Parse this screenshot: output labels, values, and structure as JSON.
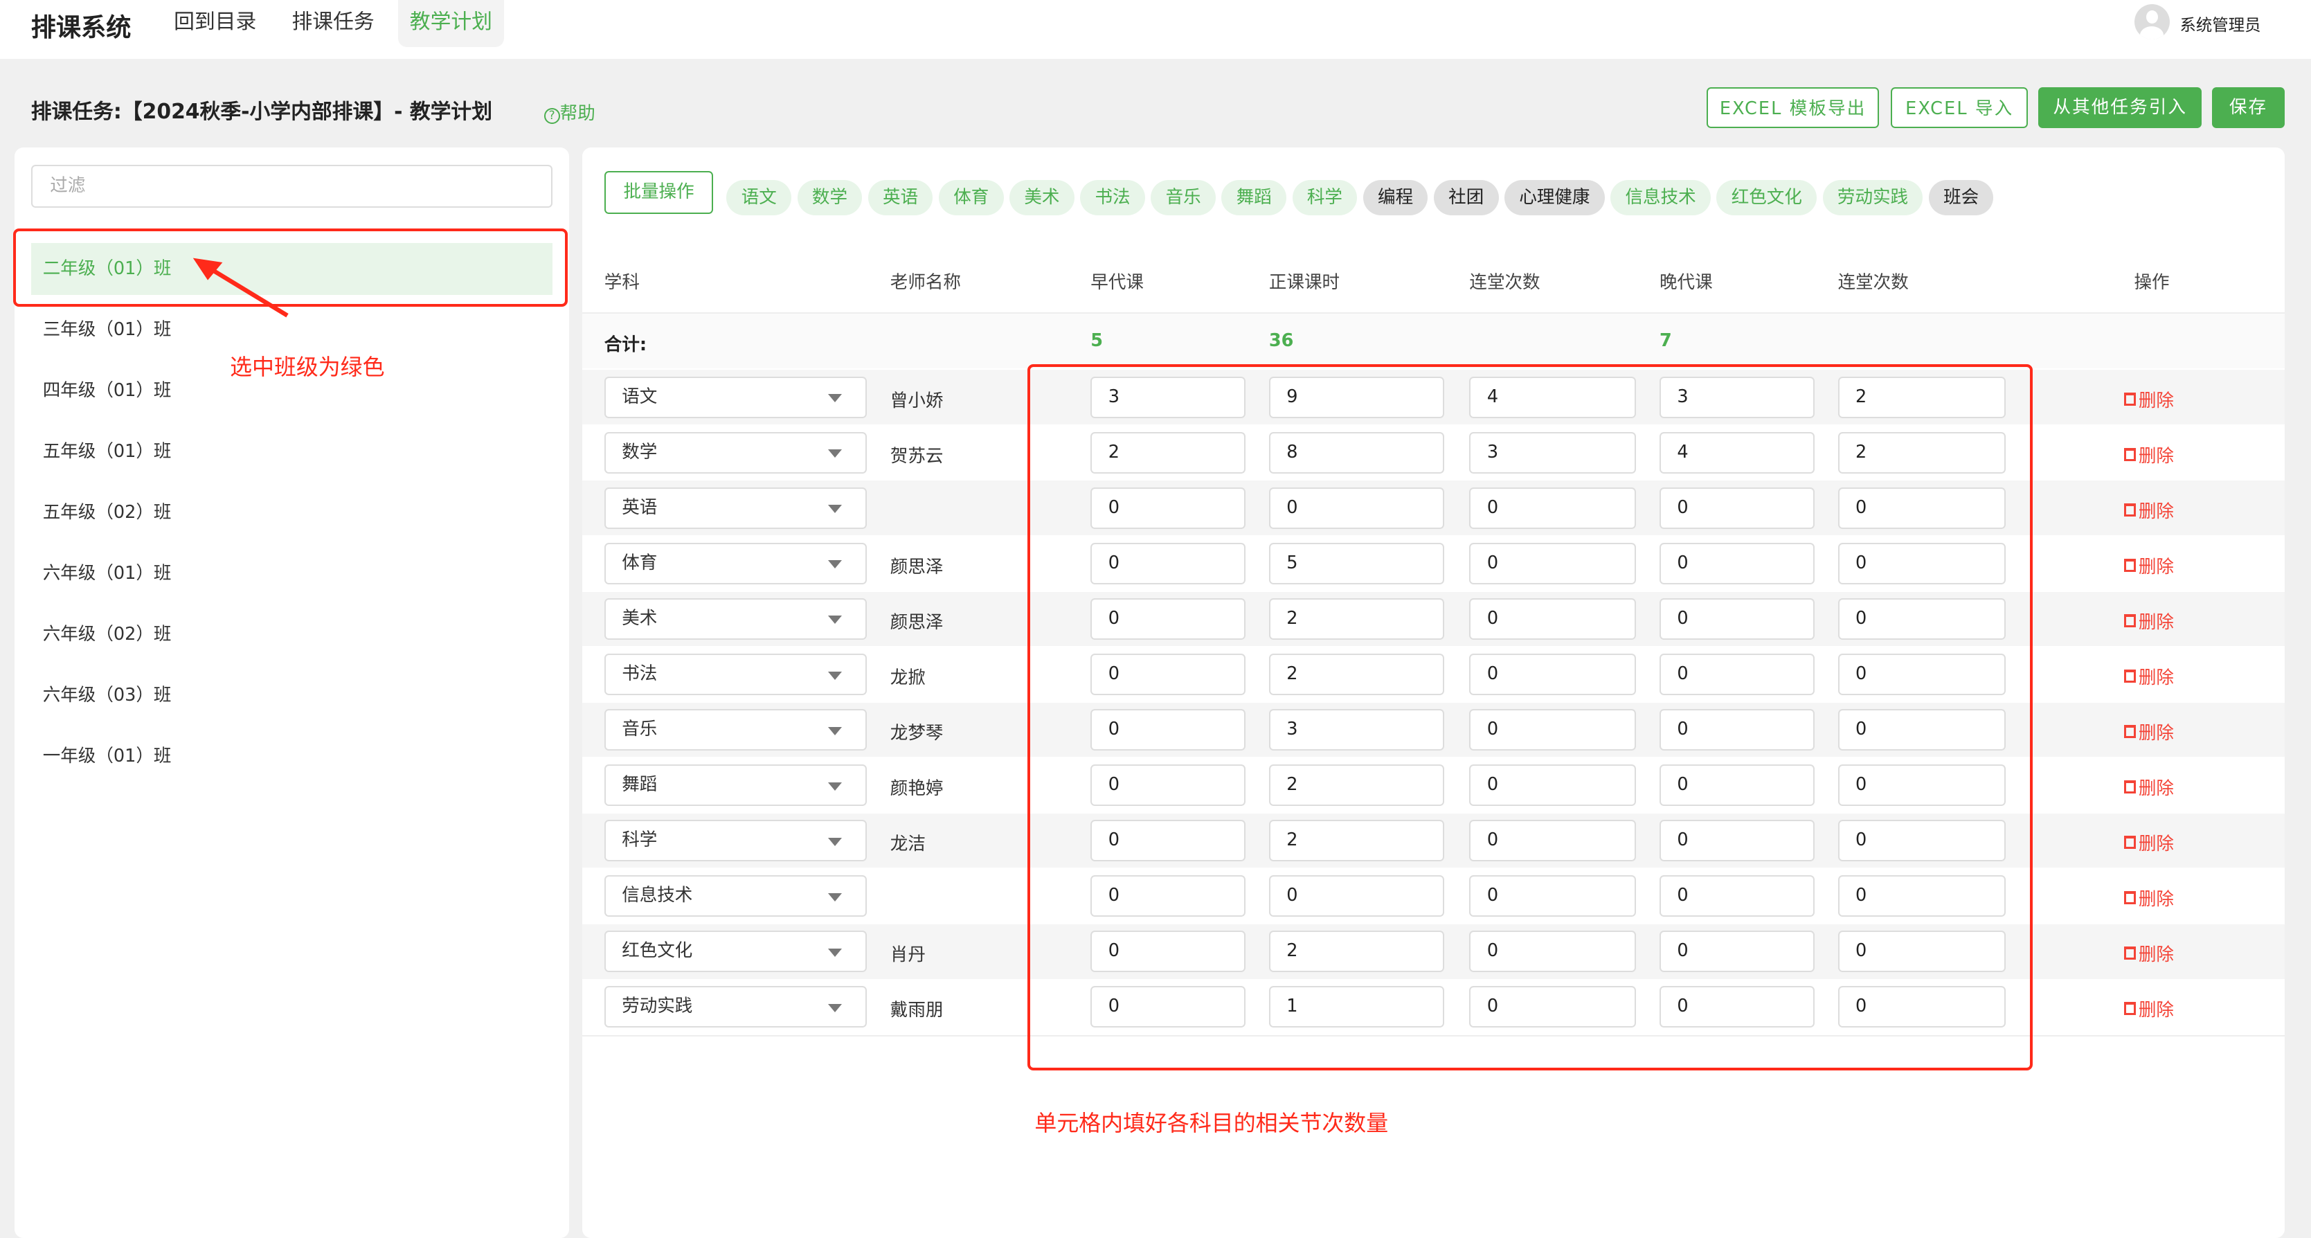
{
  "app": {
    "title": "排课系统",
    "nav": [
      "回到目录",
      "排课任务",
      "教学计划"
    ],
    "active_nav": 2,
    "user": "系统管理员"
  },
  "header": {
    "title": "排课任务:【2024秋季-小学内部排课】- 教学计划",
    "help": "帮助",
    "buttons": {
      "export": "EXCEL 模板导出",
      "import": "EXCEL 导入",
      "import_other": "从其他任务引入",
      "save": "保存"
    }
  },
  "sidebar": {
    "filter_placeholder": "过滤",
    "selected": 0,
    "classes": [
      "二年级（01）班",
      "三年级（01）班",
      "四年级（01）班",
      "五年级（01）班",
      "五年级（02）班",
      "六年级（01）班",
      "六年级（02）班",
      "六年级（03）班",
      "一年级（01）班"
    ]
  },
  "toolbar": {
    "batch": "批量操作",
    "chips": [
      {
        "label": "语文",
        "active": true
      },
      {
        "label": "数学",
        "active": true
      },
      {
        "label": "英语",
        "active": true
      },
      {
        "label": "体育",
        "active": true
      },
      {
        "label": "美术",
        "active": true
      },
      {
        "label": "书法",
        "active": true
      },
      {
        "label": "音乐",
        "active": true
      },
      {
        "label": "舞蹈",
        "active": true
      },
      {
        "label": "科学",
        "active": true
      },
      {
        "label": "编程",
        "active": false
      },
      {
        "label": "社团",
        "active": false
      },
      {
        "label": "心理健康",
        "active": false
      },
      {
        "label": "信息技术",
        "active": true
      },
      {
        "label": "红色文化",
        "active": true
      },
      {
        "label": "劳动实践",
        "active": true
      },
      {
        "label": "班会",
        "active": false
      }
    ]
  },
  "table": {
    "headers": [
      "学科",
      "老师名称",
      "早代课",
      "正课课时",
      "连堂次数",
      "晚代课",
      "连堂次数",
      "操作"
    ],
    "total": {
      "label": "合计:",
      "early": "5",
      "main": "36",
      "late": "7"
    },
    "delete_label": "删除",
    "rows": [
      {
        "subject": "语文",
        "teacher": "曾小娇",
        "v": [
          "3",
          "9",
          "4",
          "3",
          "2"
        ]
      },
      {
        "subject": "数学",
        "teacher": "贺苏云",
        "v": [
          "2",
          "8",
          "3",
          "4",
          "2"
        ]
      },
      {
        "subject": "英语",
        "teacher": "",
        "v": [
          "0",
          "0",
          "0",
          "0",
          "0"
        ]
      },
      {
        "subject": "体育",
        "teacher": "颜思泽",
        "v": [
          "0",
          "5",
          "0",
          "0",
          "0"
        ]
      },
      {
        "subject": "美术",
        "teacher": "颜思泽",
        "v": [
          "0",
          "2",
          "0",
          "0",
          "0"
        ]
      },
      {
        "subject": "书法",
        "teacher": "龙掀",
        "v": [
          "0",
          "2",
          "0",
          "0",
          "0"
        ]
      },
      {
        "subject": "音乐",
        "teacher": "龙梦琴",
        "v": [
          "0",
          "3",
          "0",
          "0",
          "0"
        ]
      },
      {
        "subject": "舞蹈",
        "teacher": "颜艳婷",
        "v": [
          "0",
          "2",
          "0",
          "0",
          "0"
        ]
      },
      {
        "subject": "科学",
        "teacher": "龙洁",
        "v": [
          "0",
          "2",
          "0",
          "0",
          "0"
        ]
      },
      {
        "subject": "信息技术",
        "teacher": "",
        "v": [
          "0",
          "0",
          "0",
          "0",
          "0"
        ]
      },
      {
        "subject": "红色文化",
        "teacher": "肖丹",
        "v": [
          "0",
          "2",
          "0",
          "0",
          "0"
        ]
      },
      {
        "subject": "劳动实践",
        "teacher": "戴雨朋",
        "v": [
          "0",
          "1",
          "0",
          "0",
          "0"
        ]
      }
    ]
  },
  "annotations": {
    "class_note": "选中班级为绿色",
    "cell_note": "单元格内填好各科目的相关节次数量"
  },
  "colors": {
    "accent": "#4caf50",
    "annotation": "#ff2a1a",
    "delete": "#f44336"
  }
}
